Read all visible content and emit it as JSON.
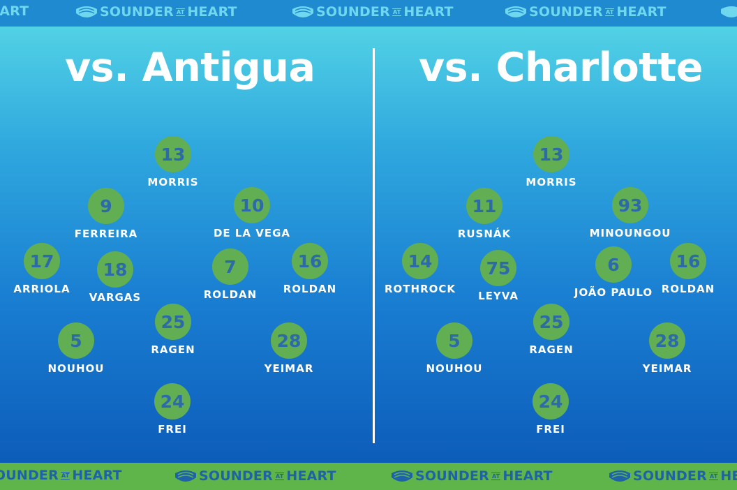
{
  "brand": "SOUNDER AT HEART",
  "brand_left": "SOUNDER",
  "brand_mid": "AT",
  "brand_right": "HEART",
  "left": {
    "title": "vs. Antigua",
    "players": [
      {
        "number": "13",
        "name": "MORRIS"
      },
      {
        "number": "9",
        "name": "FERREIRA"
      },
      {
        "number": "10",
        "name": "DE LA VEGA"
      },
      {
        "number": "17",
        "name": "ARRIOLA"
      },
      {
        "number": "18",
        "name": "VARGAS"
      },
      {
        "number": "7",
        "name": "ROLDAN"
      },
      {
        "number": "16",
        "name": "ROLDAN"
      },
      {
        "number": "25",
        "name": "RAGEN"
      },
      {
        "number": "5",
        "name": "NOUHOU"
      },
      {
        "number": "28",
        "name": "YEIMAR"
      },
      {
        "number": "24",
        "name": "FREI"
      }
    ]
  },
  "right": {
    "title": "vs. Charlotte",
    "players": [
      {
        "number": "13",
        "name": "MORRIS"
      },
      {
        "number": "11",
        "name": "RUSNÁK"
      },
      {
        "number": "93",
        "name": "MINOUNGOU"
      },
      {
        "number": "14",
        "name": "ROTHROCK"
      },
      {
        "number": "75",
        "name": "LEYVA"
      },
      {
        "number": "6",
        "name": "JOÃO PAULO"
      },
      {
        "number": "16",
        "name": "ROLDAN"
      },
      {
        "number": "25",
        "name": "RAGEN"
      },
      {
        "number": "5",
        "name": "NOUHOU"
      },
      {
        "number": "28",
        "name": "YEIMAR"
      },
      {
        "number": "24",
        "name": "FREI"
      }
    ]
  },
  "colors": {
    "circle": "#62ae52",
    "number": "#2c6aa8",
    "top_banner": "#1f8ad0",
    "bottom_banner": "#5fb54a"
  }
}
